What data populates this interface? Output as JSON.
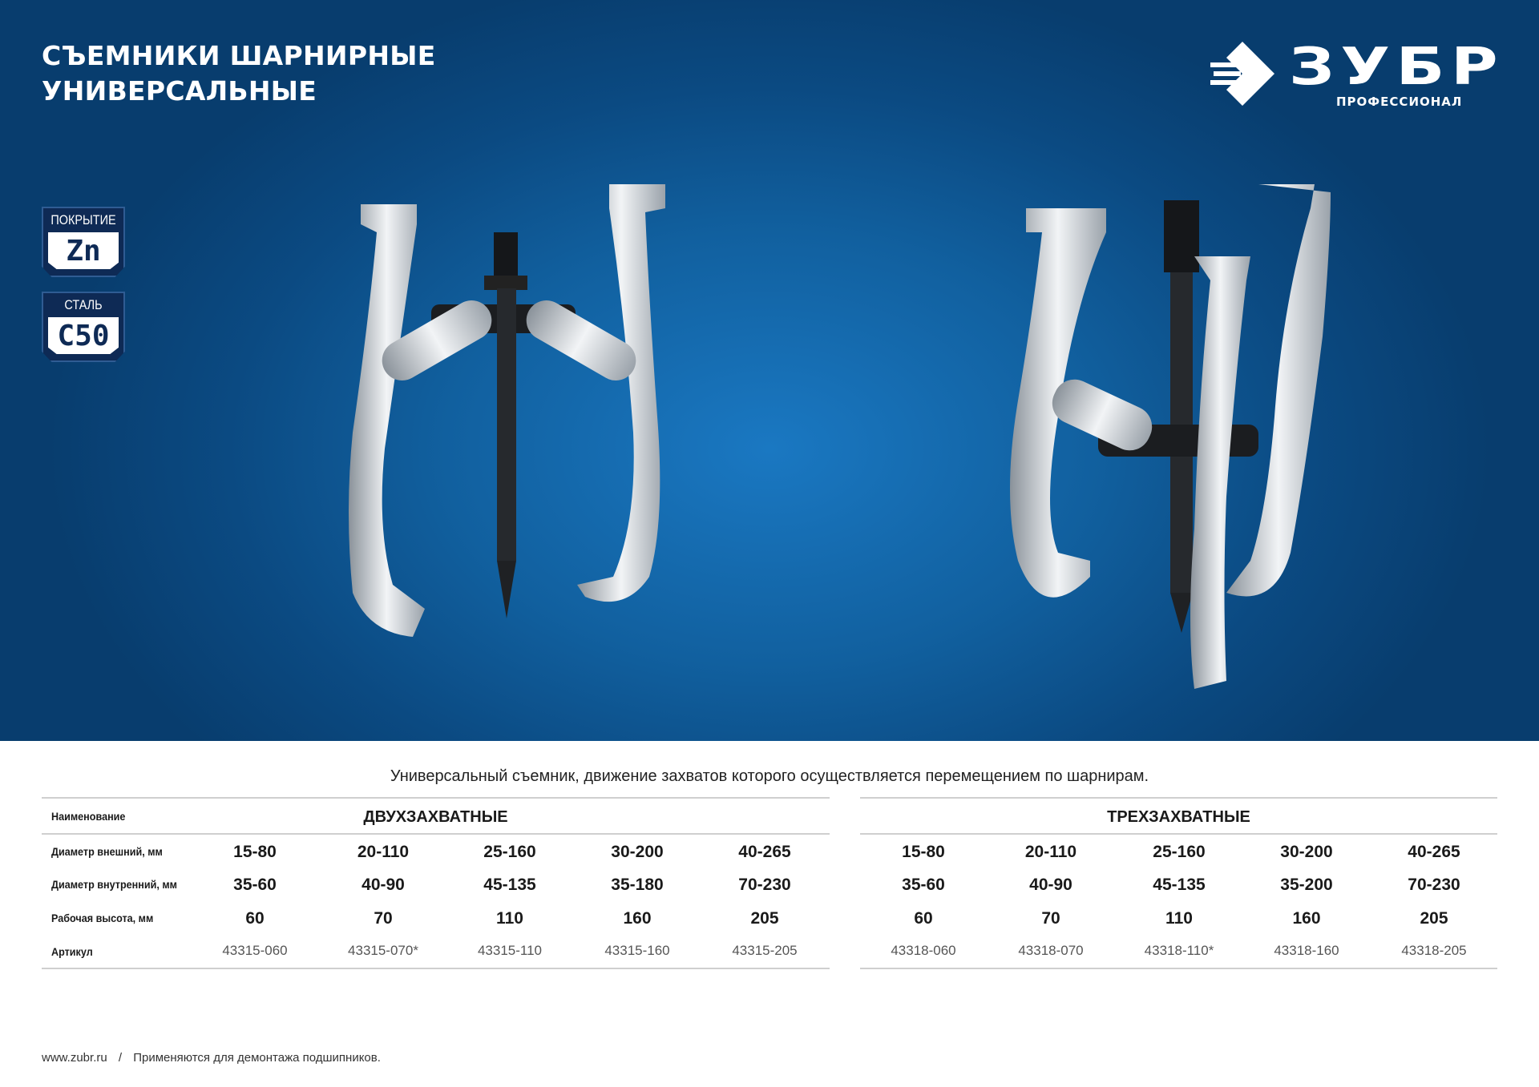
{
  "header": {
    "title_line1": "СЪЕМНИКИ ШАРНИРНЫЕ",
    "title_line2": "УНИВЕРСАЛЬНЫЕ"
  },
  "logo": {
    "brand": "ЗУБР",
    "subtitle": "ПРОФЕССИОНАЛ"
  },
  "badges": [
    {
      "caption": "ПОКРЫТИЕ",
      "value": "Zn"
    },
    {
      "caption": "СТАЛЬ",
      "value": "C50"
    }
  ],
  "colors": {
    "banner": "#11609f",
    "badge": "#0e2a55",
    "rule": "#cfcfcf"
  },
  "description": "Универсальный съемник, движение захватов которого осуществляется перемещением по шарнирам.",
  "table": {
    "row_labels": [
      "Наименование",
      "Диаметр внешний, мм",
      "Диаметр внутренний, мм",
      "Рабочая высота, мм",
      "Артикул"
    ],
    "groups": [
      {
        "name": "ДВУХЗАХВАТНЫЕ",
        "outer": [
          "15-80",
          "20-110",
          "25-160",
          "30-200",
          "40-265"
        ],
        "inner": [
          "35-60",
          "40-90",
          "45-135",
          "35-180",
          "70-230"
        ],
        "height": [
          "60",
          "70",
          "110",
          "160",
          "205"
        ],
        "article": [
          "43315-060",
          "43315-070*",
          "43315-110",
          "43315-160",
          "43315-205"
        ]
      },
      {
        "name": "ТРЕХЗАХВАТНЫЕ",
        "outer": [
          "15-80",
          "20-110",
          "25-160",
          "30-200",
          "40-265"
        ],
        "inner": [
          "35-60",
          "40-90",
          "45-135",
          "35-200",
          "70-230"
        ],
        "height": [
          "60",
          "70",
          "110",
          "160",
          "205"
        ],
        "article": [
          "43318-060",
          "43318-070",
          "43318-110*",
          "43318-160",
          "43318-205"
        ]
      }
    ]
  },
  "footer": {
    "url": "www.zubr.ru",
    "separator": "/",
    "note": "Применяются для демонтажа подшипников."
  }
}
